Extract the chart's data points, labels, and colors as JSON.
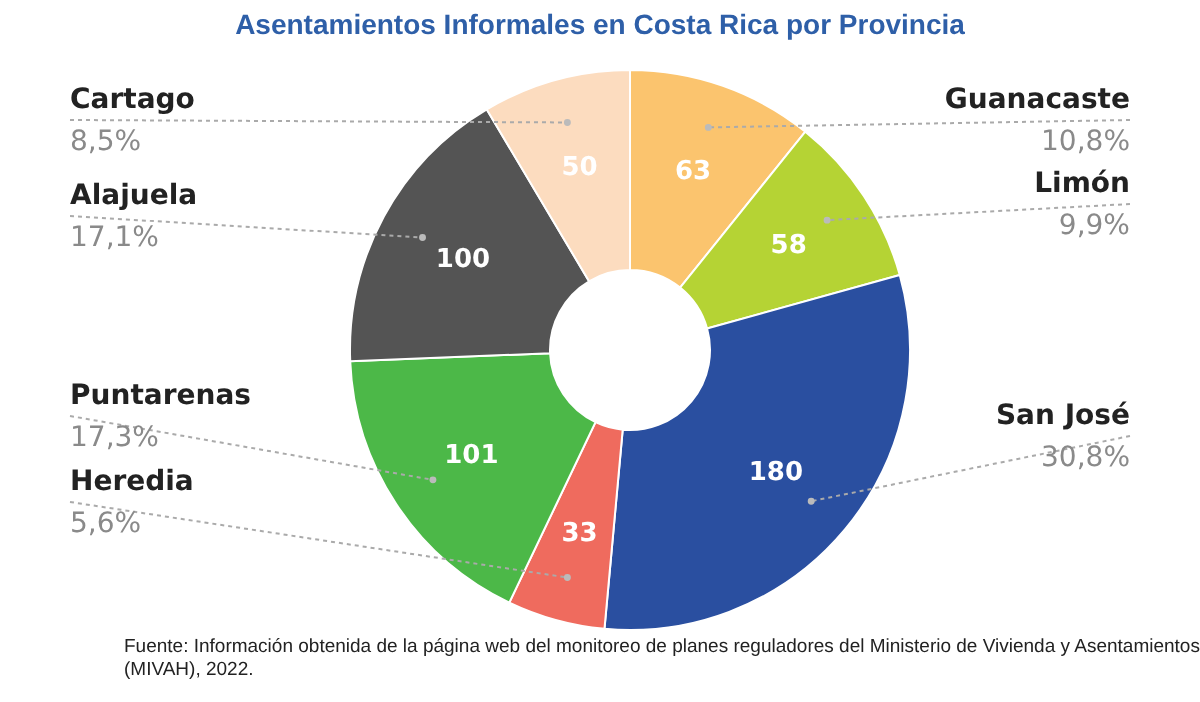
{
  "chart_data": {
    "type": "donut",
    "title": "Asentamientos Informales en Costa Rica por Provincia",
    "categories": [
      "Guanacaste",
      "Limón",
      "San José",
      "Heredia",
      "Puntarenas",
      "Alajuela",
      "Cartago"
    ],
    "values": [
      63,
      58,
      180,
      33,
      101,
      100,
      50
    ],
    "colors": [
      "#fbc46e",
      "#b5d334",
      "#2a4fa0",
      "#ef6b5e",
      "#4cb848",
      "#545454",
      "#fcdcbf"
    ],
    "data_labels": true,
    "legend": false,
    "annotations": [
      "10,8%",
      "9,9%",
      "30,8%",
      "5,6%",
      "17,3%",
      "17,1%",
      "8,5%",
      "Fuente: Información obtenida de la página web del monitoreo de planes reguladores del Ministerio de Vivienda y Asentamientos (MIVAH), 2022."
    ]
  }
}
